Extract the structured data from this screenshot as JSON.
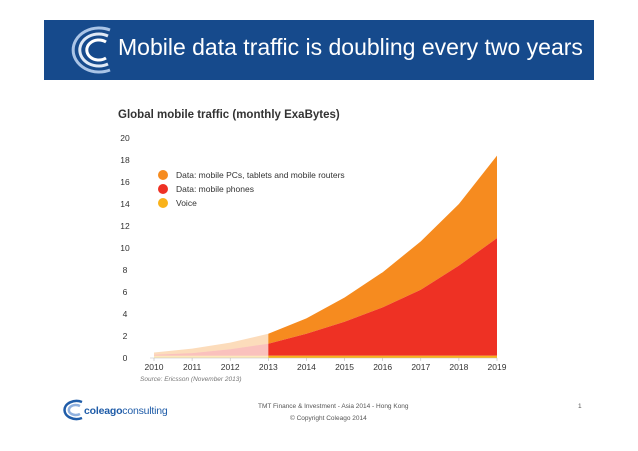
{
  "slide": {
    "title": "Mobile data traffic is doubling every two years",
    "footer_event": "TMT Finance & Investment - Asia 2014 - Hong Kong",
    "footer_copyright": "© Copyright Coleago 2014",
    "page_number": "1",
    "brand_logo_text": {
      "bold": "coleago",
      "rest": "consulting"
    },
    "colors": {
      "banner": "#164a8c",
      "brand": "#1f5ca8"
    }
  },
  "chart_data": {
    "type": "area",
    "stacked": true,
    "title": "Global mobile traffic (monthly ExaBytes)",
    "source": "Source: Ericsson (November 2013)",
    "x": [
      "2010",
      "2011",
      "2012",
      "2013",
      "2014",
      "2015",
      "2016",
      "2017",
      "2018",
      "2019"
    ],
    "ylim": [
      0,
      20
    ],
    "yticks": [
      "0",
      "2",
      "4",
      "6",
      "8",
      "10",
      "12",
      "14",
      "16",
      "18",
      "20"
    ],
    "historical_through": "2013",
    "legend_position": "top-left",
    "series": [
      {
        "name": "Voice",
        "color": "#f9b21a",
        "values": [
          0.2,
          0.2,
          0.2,
          0.2,
          0.2,
          0.2,
          0.2,
          0.2,
          0.2,
          0.2
        ]
      },
      {
        "name": "Data: mobile phones",
        "color": "#ee3124",
        "values": [
          0.1,
          0.25,
          0.6,
          1.1,
          2.0,
          3.1,
          4.4,
          6.0,
          8.2,
          10.7
        ]
      },
      {
        "name": "Data: mobile PCs, tablets and mobile routers",
        "color": "#f68b1f",
        "values": [
          0.2,
          0.4,
          0.6,
          0.9,
          1.4,
          2.2,
          3.2,
          4.4,
          5.6,
          7.5
        ]
      }
    ]
  }
}
